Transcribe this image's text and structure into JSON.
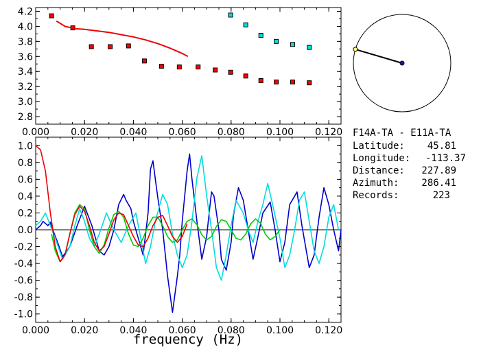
{
  "chart_data": [
    {
      "type": "scatter",
      "xlim": [
        0.0,
        0.125
      ],
      "ylim": [
        2.7,
        4.25
      ],
      "x_ticks": [
        "0.000",
        "0.020",
        "0.040",
        "0.060",
        "0.080",
        "0.100",
        "0.120"
      ],
      "y_ticks": [
        "2.8",
        "3.0",
        "3.2",
        "3.4",
        "3.6",
        "3.8",
        "4.0",
        "4.2"
      ],
      "series": [
        {
          "color": "#ff0000",
          "mode": "markers",
          "x": [
            0.0065,
            0.0152,
            0.0228,
            0.0305,
            0.038,
            0.0445,
            0.0515,
            0.0588,
            0.0665,
            0.0735,
            0.0798,
            0.086,
            0.0922,
            0.0985,
            0.1052,
            0.112
          ],
          "y": [
            4.14,
            3.98,
            3.73,
            3.73,
            3.74,
            3.54,
            3.47,
            3.46,
            3.46,
            3.42,
            3.39,
            3.34,
            3.28,
            3.26,
            3.26,
            3.25
          ]
        },
        {
          "color": "#00dddd",
          "mode": "markers",
          "x": [
            0.0798,
            0.086,
            0.0922,
            0.0985,
            0.1052,
            0.112
          ],
          "y": [
            4.15,
            4.02,
            3.88,
            3.8,
            3.76,
            3.72
          ]
        },
        {
          "color": "#ee0000",
          "mode": "line",
          "x": [
            0.0085,
            0.012,
            0.016,
            0.02,
            0.025,
            0.03,
            0.035,
            0.04,
            0.045,
            0.05,
            0.055,
            0.06,
            0.0623
          ],
          "y": [
            4.07,
            4.0,
            3.97,
            3.96,
            3.94,
            3.92,
            3.89,
            3.86,
            3.82,
            3.77,
            3.71,
            3.64,
            3.6
          ]
        }
      ]
    },
    {
      "type": "line",
      "xlabel": "frequency (Hz)",
      "xlim": [
        0.0,
        0.125
      ],
      "ylim": [
        -1.1,
        1.1
      ],
      "x_ticks": [
        "0.000",
        "0.020",
        "0.040",
        "0.060",
        "0.080",
        "0.100",
        "0.120"
      ],
      "y_ticks": [
        "1.0",
        "0.8",
        "0.6",
        "0.4",
        "0.2",
        "0.0",
        "-0.2",
        "-0.4",
        "-0.6",
        "-0.8",
        "-1.0"
      ],
      "series": [
        {
          "color": "#0000cc",
          "x": [
            0.0,
            0.002,
            0.003,
            0.005,
            0.006,
            0.007,
            0.009,
            0.011,
            0.014,
            0.017,
            0.02,
            0.023,
            0.026,
            0.028,
            0.03,
            0.032,
            0.034,
            0.036,
            0.037,
            0.038,
            0.039,
            0.04,
            0.042,
            0.044,
            0.045,
            0.046,
            0.047,
            0.048,
            0.049,
            0.05,
            0.052,
            0.054,
            0.056,
            0.058,
            0.059,
            0.06,
            0.062,
            0.063,
            0.064,
            0.066,
            0.068,
            0.07,
            0.071,
            0.072,
            0.073,
            0.075,
            0.076,
            0.078,
            0.08,
            0.081,
            0.083,
            0.085,
            0.087,
            0.089,
            0.091,
            0.093,
            0.096,
            0.098,
            0.1,
            0.102,
            0.104,
            0.107,
            0.109,
            0.112,
            0.114,
            0.116,
            0.118,
            0.12,
            0.122,
            0.124,
            0.125
          ],
          "y": [
            0.0,
            0.05,
            0.1,
            0.05,
            0.09,
            0.0,
            -0.15,
            -0.32,
            -0.2,
            0.05,
            0.28,
            0.05,
            -0.25,
            -0.3,
            -0.2,
            0.0,
            0.3,
            0.42,
            0.35,
            0.3,
            0.25,
            0.1,
            -0.1,
            -0.3,
            -0.05,
            0.2,
            0.72,
            0.82,
            0.6,
            0.38,
            0.0,
            -0.55,
            -0.98,
            -0.55,
            -0.3,
            0.1,
            0.7,
            0.9,
            0.6,
            0.1,
            -0.35,
            -0.08,
            0.2,
            0.45,
            0.4,
            0.0,
            -0.35,
            -0.48,
            -0.15,
            0.18,
            0.5,
            0.35,
            0.0,
            -0.35,
            -0.08,
            0.2,
            0.33,
            0.0,
            -0.38,
            -0.15,
            0.3,
            0.45,
            0.05,
            -0.45,
            -0.3,
            0.15,
            0.5,
            0.3,
            0.0,
            -0.25,
            0.0
          ]
        },
        {
          "color": "#00dddd",
          "x": [
            0.0,
            0.002,
            0.004,
            0.006,
            0.008,
            0.011,
            0.014,
            0.016,
            0.018,
            0.02,
            0.022,
            0.024,
            0.026,
            0.029,
            0.032,
            0.035,
            0.038,
            0.041,
            0.043,
            0.045,
            0.047,
            0.049,
            0.052,
            0.054,
            0.056,
            0.058,
            0.06,
            0.062,
            0.064,
            0.066,
            0.068,
            0.07,
            0.072,
            0.074,
            0.076,
            0.078,
            0.08,
            0.082,
            0.085,
            0.087,
            0.089,
            0.091,
            0.093,
            0.095,
            0.097,
            0.1,
            0.102,
            0.104,
            0.106,
            0.108,
            0.11,
            0.112,
            0.114,
            0.116,
            0.118,
            0.12,
            0.122,
            0.124
          ],
          "y": [
            0.05,
            0.1,
            0.2,
            0.05,
            -0.1,
            -0.35,
            -0.2,
            0.05,
            0.25,
            0.1,
            -0.1,
            -0.2,
            -0.05,
            0.2,
            0.0,
            -0.15,
            0.05,
            0.2,
            -0.1,
            -0.4,
            -0.2,
            0.1,
            0.42,
            0.3,
            -0.05,
            -0.3,
            -0.45,
            -0.3,
            0.1,
            0.62,
            0.88,
            0.4,
            0.0,
            -0.45,
            -0.6,
            -0.3,
            0.05,
            0.35,
            0.2,
            0.0,
            -0.15,
            0.1,
            0.3,
            0.55,
            0.3,
            -0.1,
            -0.45,
            -0.3,
            0.0,
            0.35,
            0.45,
            0.1,
            -0.25,
            -0.4,
            -0.2,
            0.15,
            0.3,
            0.0
          ]
        },
        {
          "color": "#00cc00",
          "x": [
            0.0065,
            0.008,
            0.01,
            0.012,
            0.014,
            0.016,
            0.018,
            0.02,
            0.022,
            0.024,
            0.026,
            0.028,
            0.03,
            0.032,
            0.034,
            0.036,
            0.038,
            0.04,
            0.042,
            0.044,
            0.046,
            0.048,
            0.05,
            0.052,
            0.054,
            0.056,
            0.058,
            0.06,
            0.062,
            0.064,
            0.066,
            0.068,
            0.07,
            0.072,
            0.074,
            0.076,
            0.078,
            0.08,
            0.082,
            0.084,
            0.086,
            0.088,
            0.09,
            0.092,
            0.094,
            0.096,
            0.098,
            0.1
          ],
          "y": [
            -0.05,
            -0.25,
            -0.38,
            -0.3,
            -0.05,
            0.2,
            0.3,
            0.25,
            0.0,
            -0.2,
            -0.28,
            -0.18,
            0.02,
            0.18,
            0.22,
            0.15,
            -0.05,
            -0.18,
            -0.2,
            -0.1,
            0.05,
            0.15,
            0.15,
            0.05,
            -0.08,
            -0.15,
            -0.12,
            0.0,
            0.1,
            0.13,
            0.06,
            -0.06,
            -0.12,
            -0.08,
            0.04,
            0.12,
            0.1,
            0.0,
            -0.1,
            -0.12,
            -0.05,
            0.07,
            0.13,
            0.08,
            -0.05,
            -0.12,
            -0.08,
            0.0
          ]
        },
        {
          "color": "#ee0000",
          "x": [
            0.0,
            0.002,
            0.004,
            0.006,
            0.008,
            0.01,
            0.012,
            0.014,
            0.016,
            0.018,
            0.02,
            0.022,
            0.024,
            0.026,
            0.028,
            0.03,
            0.032,
            0.034,
            0.036,
            0.038,
            0.04,
            0.042,
            0.044,
            0.046,
            0.048,
            0.05,
            0.052,
            0.054,
            0.056,
            0.058,
            0.06,
            0.062
          ],
          "y": [
            1.0,
            0.95,
            0.7,
            0.2,
            -0.2,
            -0.38,
            -0.3,
            -0.05,
            0.18,
            0.28,
            0.22,
            0.05,
            -0.15,
            -0.25,
            -0.2,
            -0.05,
            0.12,
            0.2,
            0.18,
            0.05,
            -0.08,
            -0.18,
            -0.2,
            -0.1,
            0.05,
            0.15,
            0.17,
            0.05,
            -0.08,
            -0.15,
            -0.08,
            0.07
          ]
        }
      ]
    }
  ],
  "info": {
    "station_pair": "F14A-TA  -  E11A-TA",
    "latitude_label": "Latitude:",
    "latitude_value": "45.81",
    "longitude_label": "Longitude:",
    "longitude_value": "-113.37",
    "distance_label": "Distance:",
    "distance_value": "227.89",
    "azimuth_label": "Azimuth:",
    "azimuth_value": "286.41",
    "records_label": "Records:",
    "records_value": "223"
  },
  "azimuth_dial": {
    "azimuth_deg": 286.41,
    "center_color": "#1a1aa0",
    "tip_color": "#ffff88"
  }
}
